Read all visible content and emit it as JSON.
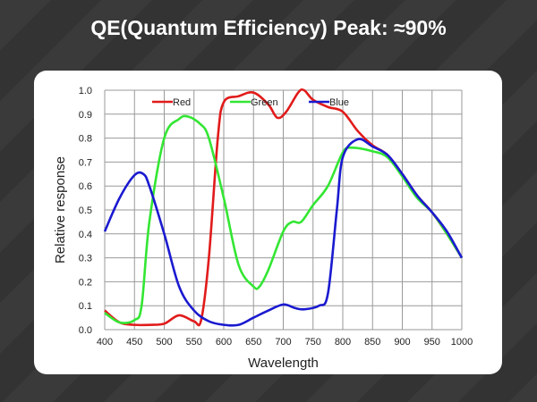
{
  "title": "QE(Quantum Efficiency) Peak: ≈90%",
  "chart_data": {
    "type": "line",
    "title": "QE(Quantum Efficiency) Peak: ≈90%",
    "xlabel": "Wavelength",
    "ylabel": "Relative response",
    "xlim": [
      400,
      1000
    ],
    "ylim": [
      0,
      1.0
    ],
    "xticks": [
      400,
      450,
      500,
      550,
      600,
      650,
      700,
      750,
      800,
      850,
      900,
      950,
      1000
    ],
    "yticks": [
      "0.0",
      "0.1",
      "0.2",
      "0.3",
      "0.4",
      "0.5",
      "0.6",
      "0.7",
      "0.8",
      "0.9",
      "1.0"
    ],
    "grid": true,
    "legend": "top",
    "series": [
      {
        "name": "Red",
        "color": "#e11b1b",
        "points": [
          [
            400,
            0.08
          ],
          [
            425,
            0.03
          ],
          [
            450,
            0.02
          ],
          [
            475,
            0.02
          ],
          [
            500,
            0.025
          ],
          [
            525,
            0.06
          ],
          [
            550,
            0.035
          ],
          [
            562,
            0.04
          ],
          [
            575,
            0.3
          ],
          [
            590,
            0.8
          ],
          [
            600,
            0.95
          ],
          [
            625,
            0.975
          ],
          [
            650,
            0.99
          ],
          [
            675,
            0.94
          ],
          [
            690,
            0.885
          ],
          [
            705,
            0.91
          ],
          [
            725,
            0.99
          ],
          [
            735,
            1.0
          ],
          [
            750,
            0.96
          ],
          [
            775,
            0.93
          ],
          [
            800,
            0.91
          ],
          [
            825,
            0.83
          ],
          [
            850,
            0.77
          ],
          [
            875,
            0.73
          ],
          [
            900,
            0.65
          ],
          [
            925,
            0.56
          ],
          [
            950,
            0.49
          ],
          [
            975,
            0.4
          ],
          [
            1000,
            0.3
          ]
        ]
      },
      {
        "name": "Green",
        "color": "#33e633",
        "points": [
          [
            400,
            0.07
          ],
          [
            425,
            0.03
          ],
          [
            450,
            0.04
          ],
          [
            462,
            0.1
          ],
          [
            475,
            0.45
          ],
          [
            500,
            0.8
          ],
          [
            525,
            0.88
          ],
          [
            540,
            0.89
          ],
          [
            560,
            0.86
          ],
          [
            575,
            0.8
          ],
          [
            600,
            0.55
          ],
          [
            625,
            0.27
          ],
          [
            650,
            0.18
          ],
          [
            660,
            0.18
          ],
          [
            675,
            0.25
          ],
          [
            700,
            0.41
          ],
          [
            715,
            0.45
          ],
          [
            730,
            0.45
          ],
          [
            750,
            0.52
          ],
          [
            775,
            0.6
          ],
          [
            800,
            0.74
          ],
          [
            815,
            0.76
          ],
          [
            850,
            0.745
          ],
          [
            875,
            0.72
          ],
          [
            900,
            0.64
          ],
          [
            925,
            0.55
          ],
          [
            950,
            0.49
          ],
          [
            975,
            0.4
          ],
          [
            1000,
            0.3
          ]
        ]
      },
      {
        "name": "Blue",
        "color": "#1a1ad0",
        "points": [
          [
            400,
            0.41
          ],
          [
            425,
            0.55
          ],
          [
            450,
            0.645
          ],
          [
            465,
            0.65
          ],
          [
            475,
            0.6
          ],
          [
            500,
            0.4
          ],
          [
            525,
            0.18
          ],
          [
            550,
            0.08
          ],
          [
            575,
            0.035
          ],
          [
            600,
            0.02
          ],
          [
            625,
            0.02
          ],
          [
            650,
            0.05
          ],
          [
            675,
            0.08
          ],
          [
            700,
            0.105
          ],
          [
            720,
            0.09
          ],
          [
            735,
            0.085
          ],
          [
            760,
            0.1
          ],
          [
            775,
            0.15
          ],
          [
            790,
            0.5
          ],
          [
            800,
            0.72
          ],
          [
            825,
            0.795
          ],
          [
            850,
            0.765
          ],
          [
            875,
            0.73
          ],
          [
            900,
            0.65
          ],
          [
            925,
            0.56
          ],
          [
            950,
            0.49
          ],
          [
            975,
            0.41
          ],
          [
            1000,
            0.3
          ]
        ]
      }
    ]
  }
}
